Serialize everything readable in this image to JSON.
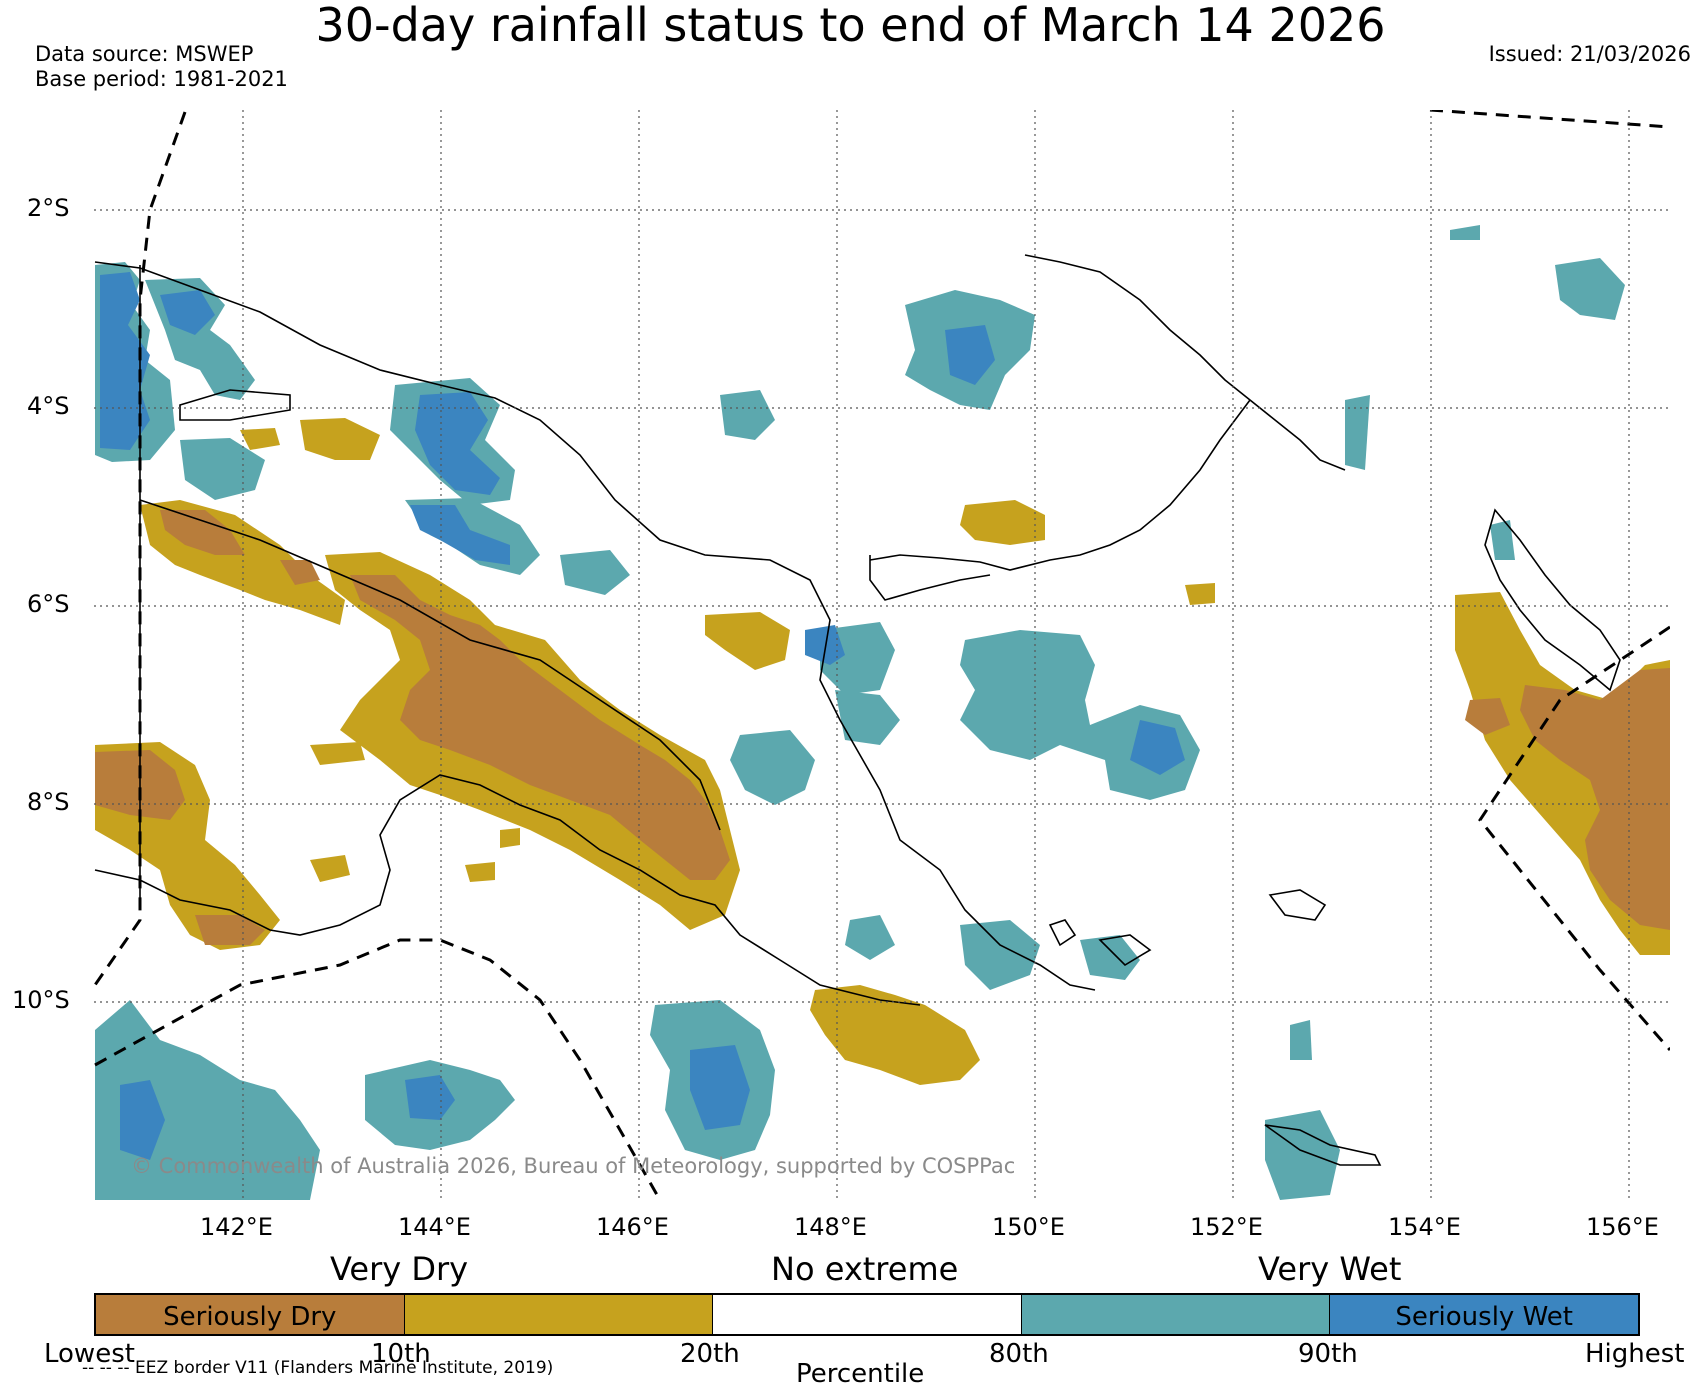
{
  "title": "30-day rainfall status to end of March 14 2026",
  "data_source": "Data source: MSWEP",
  "base_period": "Base period: 1981-2021",
  "issued": "Issued: 21/03/2026",
  "copyright": "© Commonwealth of Australia 2026, Bureau of Meteorology, supported by COSPPac",
  "eez_note": "-- -- -- EEZ border V11 (Flanders Marine Institute, 2019)",
  "latitude_labels": [
    "2°S",
    "4°S",
    "6°S",
    "8°S",
    "10°S"
  ],
  "longitude_labels": [
    "142°E",
    "144°E",
    "146°E",
    "148°E",
    "150°E",
    "152°E",
    "154°E",
    "156°E"
  ],
  "legend": {
    "headers": [
      "Very Dry",
      "No extreme",
      "Very Wet"
    ],
    "categories": [
      {
        "label": "Seriously Dry",
        "color": "#b87d3b"
      },
      {
        "label": "",
        "color": "#c6a21e"
      },
      {
        "label": "",
        "color": "#ffffff"
      },
      {
        "label": "",
        "color": "#5ca8ae"
      },
      {
        "label": "Seriously Wet",
        "color": "#3b85c0"
      }
    ],
    "percentile_ticks": [
      "Lowest",
      "10th",
      "20th",
      "80th",
      "90th",
      "Highest"
    ],
    "axis_label": "Percentile"
  },
  "colors": {
    "seriously_dry": "#b87d3b",
    "very_dry": "#c6a21e",
    "very_wet": "#5ca8ae",
    "seriously_wet": "#3b85c0",
    "gridline": "#555555",
    "copyright_text": "#8a8a8a"
  }
}
